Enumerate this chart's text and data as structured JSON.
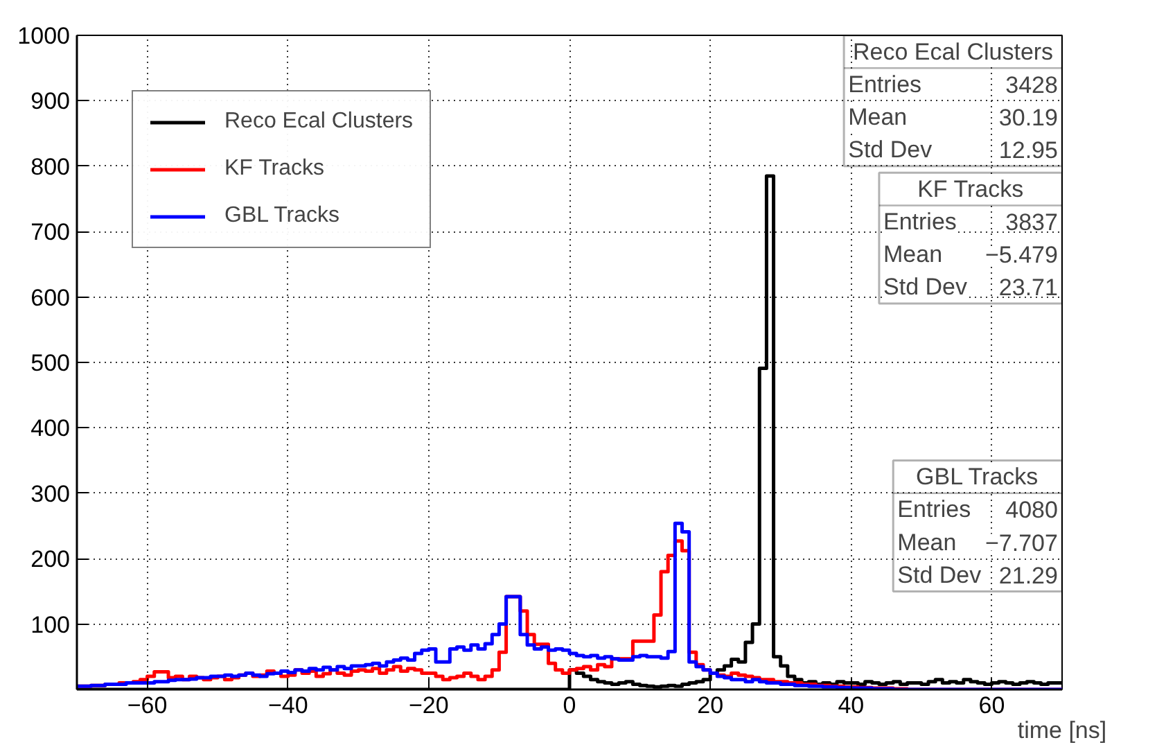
{
  "chart_data": {
    "type": "histogram",
    "xlabel": "time [ns]",
    "bins": [
      -70,
      -69,
      -68,
      -67,
      -66,
      -65,
      -64,
      -63,
      -62,
      -61,
      -60,
      -59,
      -58,
      -57,
      -56,
      -55,
      -54,
      -53,
      -52,
      -51,
      -50,
      -49,
      -48,
      -47,
      -46,
      -45,
      -44,
      -43,
      -42,
      -41,
      -40,
      -39,
      -38,
      -37,
      -36,
      -35,
      -34,
      -33,
      -32,
      -31,
      -30,
      -29,
      -28,
      -27,
      -26,
      -25,
      -24,
      -23,
      -22,
      -21,
      -20,
      -19,
      -18,
      -17,
      -16,
      -15,
      -14,
      -13,
      -12,
      -11,
      -10,
      -9,
      -8,
      -7,
      -6,
      -5,
      -4,
      -3,
      -2,
      -1,
      0,
      1,
      2,
      3,
      4,
      5,
      6,
      7,
      8,
      9,
      10,
      11,
      12,
      13,
      14,
      15,
      16,
      17,
      18,
      19,
      20,
      21,
      22,
      23,
      24,
      25,
      26,
      27,
      28,
      29,
      30,
      31,
      32,
      33,
      34,
      35,
      36,
      37,
      38,
      39,
      40,
      41,
      42,
      43,
      44,
      45,
      46,
      47,
      48,
      49,
      50,
      51,
      52,
      53,
      54,
      55,
      56,
      57,
      58,
      59,
      60,
      61,
      62,
      63,
      64,
      65,
      66,
      67,
      68,
      69,
      70
    ],
    "series": [
      {
        "name": "Reco Ecal Clusters",
        "color": "#000000",
        "values": [
          0,
          0,
          0,
          0,
          0,
          0,
          0,
          0,
          0,
          0,
          0,
          0,
          0,
          0,
          0,
          0,
          0,
          0,
          0,
          0,
          0,
          0,
          0,
          0,
          0,
          0,
          0,
          0,
          0,
          0,
          0,
          0,
          0,
          0,
          0,
          0,
          0,
          0,
          0,
          0,
          0,
          0,
          0,
          0,
          0,
          0,
          0,
          0,
          0,
          0,
          0,
          0,
          0,
          0,
          0,
          0,
          0,
          0,
          0,
          0,
          0,
          0,
          0,
          0,
          0,
          0,
          0,
          0,
          0,
          0,
          30,
          25,
          20,
          15,
          12,
          10,
          8,
          10,
          12,
          8,
          6,
          5,
          4,
          5,
          6,
          5,
          8,
          10,
          12,
          15,
          25,
          30,
          36,
          46,
          42,
          72,
          100,
          491,
          785,
          50,
          36,
          20,
          15,
          10,
          12,
          8,
          10,
          8,
          12,
          10,
          10,
          8,
          12,
          10,
          8,
          10,
          12,
          8,
          10,
          10,
          8,
          12,
          15,
          10,
          12,
          10,
          15,
          12,
          10,
          8,
          10,
          12,
          10,
          8,
          10,
          12,
          10,
          8,
          10,
          10
        ]
      },
      {
        "name": "KF Tracks",
        "color": "#ff0000",
        "values": [
          5,
          5,
          6,
          6,
          8,
          8,
          10,
          10,
          12,
          15,
          20,
          27,
          27,
          18,
          20,
          15,
          20,
          18,
          15,
          18,
          20,
          15,
          18,
          22,
          25,
          20,
          22,
          28,
          25,
          20,
          22,
          30,
          25,
          28,
          20,
          24,
          30,
          25,
          22,
          28,
          30,
          28,
          32,
          25,
          30,
          35,
          28,
          32,
          30,
          25,
          25,
          20,
          15,
          18,
          20,
          25,
          20,
          15,
          20,
          30,
          57,
          142,
          142,
          120,
          84,
          69,
          69,
          40,
          30,
          25,
          30,
          32,
          35,
          30,
          38,
          35,
          47,
          47,
          47,
          74,
          74,
          74,
          114,
          180,
          205,
          227,
          212,
          57,
          38,
          30,
          25,
          22,
          20,
          25,
          22,
          20,
          18,
          15,
          15,
          12,
          12,
          10,
          10,
          8,
          8,
          6,
          6,
          5,
          5,
          4,
          4,
          3,
          3,
          2,
          2,
          2,
          1,
          1,
          0,
          0,
          0,
          0,
          0,
          0,
          0,
          0,
          0,
          0,
          0,
          0,
          0,
          0,
          0,
          0,
          0,
          0,
          0,
          0,
          0,
          0
        ]
      },
      {
        "name": "GBL Tracks",
        "color": "#0000ff",
        "values": [
          5,
          5,
          6,
          6,
          8,
          8,
          8,
          10,
          10,
          10,
          10,
          12,
          12,
          14,
          15,
          15,
          16,
          18,
          18,
          20,
          20,
          22,
          20,
          22,
          25,
          22,
          20,
          24,
          25,
          28,
          26,
          30,
          28,
          32,
          30,
          34,
          30,
          35,
          32,
          36,
          36,
          38,
          40,
          36,
          42,
          45,
          48,
          45,
          55,
          60,
          62,
          42,
          42,
          62,
          65,
          60,
          68,
          62,
          70,
          84,
          100,
          142,
          142,
          84,
          68,
          62,
          65,
          60,
          62,
          60,
          55,
          52,
          50,
          52,
          48,
          50,
          47,
          45,
          45,
          50,
          52,
          50,
          50,
          48,
          58,
          254,
          241,
          42,
          35,
          30,
          25,
          20,
          18,
          15,
          15,
          12,
          15,
          12,
          10,
          10,
          8,
          8,
          6,
          6,
          5,
          5,
          4,
          4,
          3,
          3,
          2,
          2,
          2,
          1,
          1,
          1,
          0,
          0,
          0,
          0,
          0,
          0,
          0,
          0,
          0,
          0,
          0,
          0,
          0,
          0,
          0,
          0,
          0,
          0,
          0,
          0,
          0,
          0,
          0,
          0
        ]
      }
    ],
    "xlim": [
      -70,
      70
    ],
    "ylim": [
      0,
      1000
    ],
    "xticks": [
      -60,
      -40,
      -20,
      0,
      20,
      40,
      60
    ],
    "yticks": [
      100,
      200,
      300,
      400,
      500,
      600,
      700,
      800,
      900,
      1000
    ],
    "grid": true,
    "legend": "top left",
    "annotations": [
      "Reco Ecal Clusters",
      "Entries 3428",
      "Mean 30.19",
      "Std Dev 12.95",
      "KF Tracks",
      "Entries 3837",
      "Mean −5.479",
      "Std Dev 23.71",
      "GBL Tracks",
      "Entries 4080",
      "Mean −7.707",
      "Std Dev 21.29"
    ]
  }
}
